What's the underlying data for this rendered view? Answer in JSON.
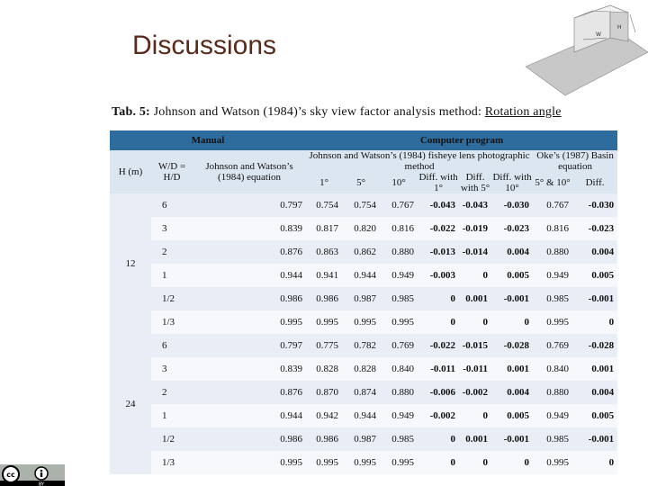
{
  "slide": {
    "title": "Discussions",
    "caption_prefix": "Tab. 5:",
    "caption_body": " Johnson and Watson (1984)’s sky view factor analysis method: ",
    "caption_underlined": "Rotation angle"
  },
  "illustration": {
    "label_w": "W",
    "label_h": "H"
  },
  "table": {
    "group_manual": "Manual",
    "group_computer": "Computer program",
    "col_h": "H (m)",
    "col_wd": "W/D = H/D",
    "col_jw_eq": "Johnson and Watson’s (1984) equation",
    "col_jw_fisheye": "Johnson and Watson’s (1984) fisheye lens photographic method",
    "col_oke": "Oke’s (1987) Basin equation",
    "sub_1": "1°",
    "sub_5": "5°",
    "sub_10": "10°",
    "sub_diff1": "Diff. with 1°",
    "sub_diff5": "Diff. with 5°",
    "sub_diff10": "Diff. with 10°",
    "sub_5_10": "5° & 10°",
    "sub_diff": "Diff.",
    "groups": [
      {
        "h": "12",
        "rows": [
          [
            "6",
            "0.797",
            "0.754",
            "0.754",
            "0.767",
            "-0.043",
            "-0.043",
            "-0.030",
            "0.767",
            "-0.030"
          ],
          [
            "3",
            "0.839",
            "0.817",
            "0.820",
            "0.816",
            "-0.022",
            "-0.019",
            "-0.023",
            "0.816",
            "-0.023"
          ],
          [
            "2",
            "0.876",
            "0.863",
            "0.862",
            "0.880",
            "-0.013",
            "-0.014",
            "0.004",
            "0.880",
            "0.004"
          ],
          [
            "1",
            "0.944",
            "0.941",
            "0.944",
            "0.949",
            "-0.003",
            "0",
            "0.005",
            "0.949",
            "0.005"
          ],
          [
            "1/2",
            "0.986",
            "0.986",
            "0.987",
            "0.985",
            "0",
            "0.001",
            "-0.001",
            "0.985",
            "-0.001"
          ],
          [
            "1/3",
            "0.995",
            "0.995",
            "0.995",
            "0.995",
            "0",
            "0",
            "0",
            "0.995",
            "0"
          ]
        ]
      },
      {
        "h": "24",
        "rows": [
          [
            "6",
            "0.797",
            "0.775",
            "0.782",
            "0.769",
            "-0.022",
            "-0.015",
            "-0.028",
            "0.769",
            "-0.028"
          ],
          [
            "3",
            "0.839",
            "0.828",
            "0.828",
            "0.840",
            "-0.011",
            "-0.011",
            "0.001",
            "0.840",
            "0.001"
          ],
          [
            "2",
            "0.876",
            "0.870",
            "0.874",
            "0.880",
            "-0.006",
            "-0.002",
            "0.004",
            "0.880",
            "0.004"
          ],
          [
            "1",
            "0.944",
            "0.942",
            "0.944",
            "0.949",
            "-0.002",
            "0",
            "0.005",
            "0.949",
            "0.005"
          ],
          [
            "1/2",
            "0.986",
            "0.986",
            "0.987",
            "0.985",
            "0",
            "0.001",
            "-0.001",
            "0.985",
            "-0.001"
          ],
          [
            "1/3",
            "0.995",
            "0.995",
            "0.995",
            "0.995",
            "0",
            "0",
            "0",
            "0.995",
            "0"
          ]
        ]
      }
    ]
  },
  "license": {
    "badge": "BY"
  }
}
